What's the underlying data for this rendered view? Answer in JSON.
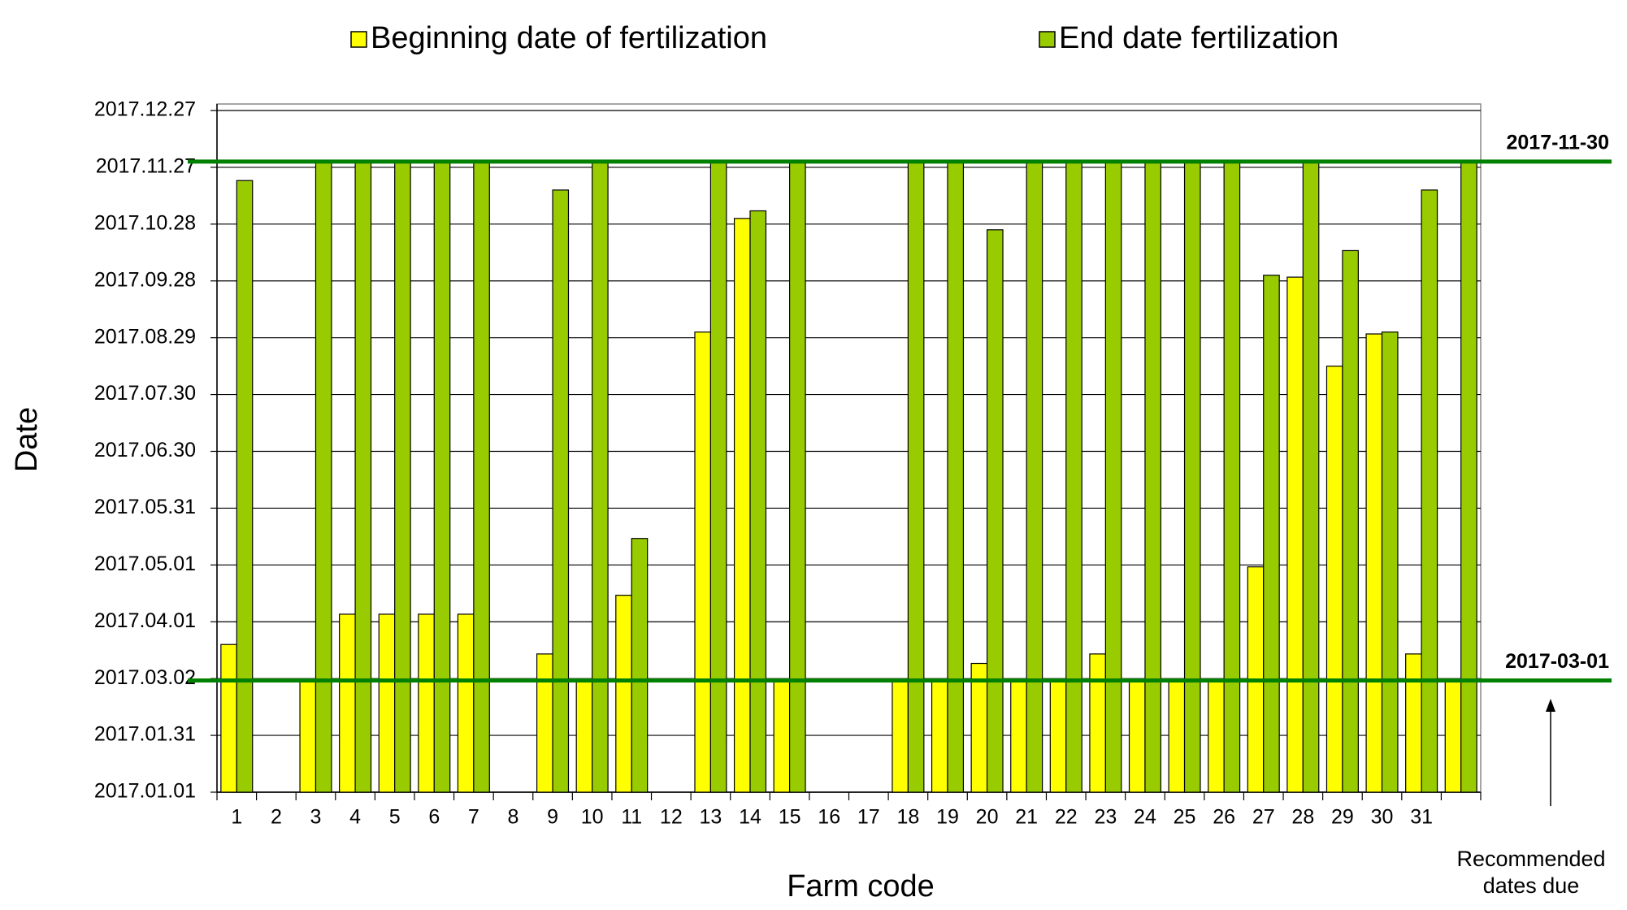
{
  "chart_data": {
    "type": "bar",
    "legend": [
      "Beginning date of fertilization",
      "End date fertilization"
    ],
    "xlabel": "Farm code",
    "ylabel": "Date",
    "categories": [
      "1",
      "2",
      "3",
      "4",
      "5",
      "6",
      "7",
      "8",
      "9",
      "10",
      "11",
      "12",
      "13",
      "14",
      "15",
      "16",
      "17",
      "18",
      "19",
      "20",
      "21",
      "22",
      "23",
      "24",
      "25",
      "26",
      "27",
      "28",
      "29",
      "30",
      "31",
      null
    ],
    "series": [
      {
        "name": "Beginning date of fertilization",
        "color": "#ffff00",
        "values": [
          78,
          null,
          59,
          94,
          94,
          94,
          94,
          null,
          73,
          59,
          104,
          null,
          243,
          303,
          59,
          null,
          null,
          59,
          59,
          68,
          59,
          59,
          73,
          59,
          59,
          59,
          119,
          272,
          225,
          242,
          73,
          59
        ]
      },
      {
        "name": "End date fertilization",
        "color": "#99cc00",
        "values": [
          323,
          null,
          333,
          333,
          333,
          333,
          333,
          null,
          318,
          333,
          134,
          null,
          333,
          307,
          333,
          null,
          null,
          333,
          333,
          297,
          333,
          333,
          333,
          333,
          333,
          333,
          273,
          333,
          286,
          243,
          318,
          333
        ]
      }
    ],
    "ylim": [
      0,
      360
    ],
    "yticks": [
      {
        "value": 0,
        "label": "2017.01.01"
      },
      {
        "value": 30,
        "label": "2017.01.31"
      },
      {
        "value": 60,
        "label": "2017.03.02"
      },
      {
        "value": 90,
        "label": "2017.04.01"
      },
      {
        "value": 120,
        "label": "2017.05.01"
      },
      {
        "value": 150,
        "label": "2017.05.31"
      },
      {
        "value": 180,
        "label": "2017.06.30"
      },
      {
        "value": 210,
        "label": "2017.07.30"
      },
      {
        "value": 240,
        "label": "2017.08.29"
      },
      {
        "value": 270,
        "label": "2017.09.28"
      },
      {
        "value": 300,
        "label": "2017.10.28"
      },
      {
        "value": 330,
        "label": "2017.11.27"
      },
      {
        "value": 360,
        "label": "2017.12.27"
      }
    ],
    "grid": true,
    "reference_lines": [
      {
        "value": 333,
        "label": "2017-11-30",
        "color": "#008000"
      },
      {
        "value": 59,
        "label": "2017-03-01",
        "color": "#008000"
      }
    ],
    "annotation": [
      "Recommended",
      "dates due"
    ]
  }
}
